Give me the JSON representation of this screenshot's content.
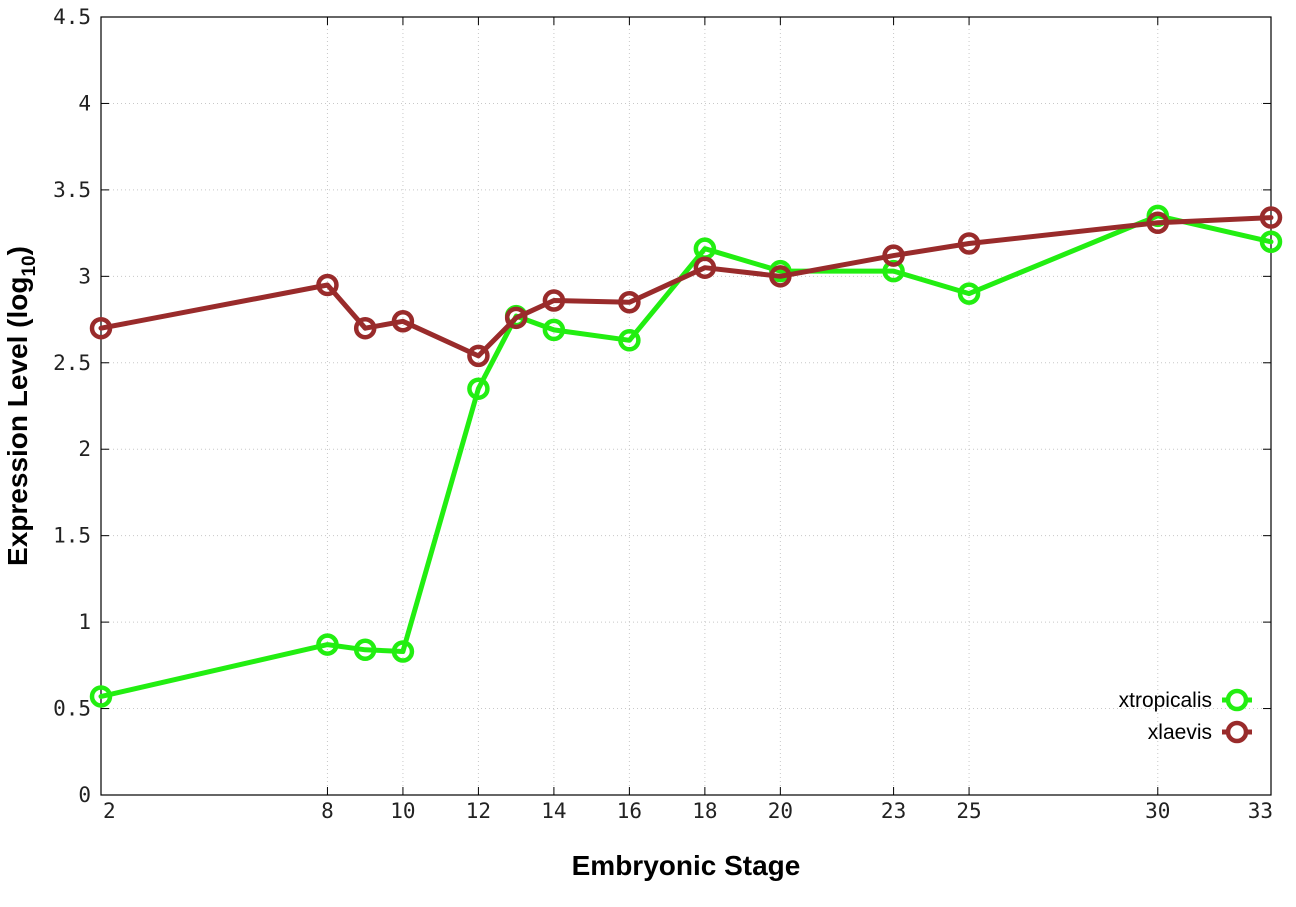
{
  "chart_data": {
    "type": "line",
    "xlabel": "Embryonic Stage",
    "ylabel_main": "Expression Level (log",
    "ylabel_sub": "10",
    "ylabel_close": ")",
    "ylim": [
      0,
      4.5
    ],
    "x_ticks": [
      2,
      8,
      10,
      12,
      14,
      16,
      18,
      20,
      23,
      25,
      30,
      33
    ],
    "y_ticks": [
      "0",
      "0.5",
      "1",
      "1.5",
      "2",
      "2.5",
      "3",
      "3.5",
      "4",
      "4.5"
    ],
    "grid": true,
    "legend_position": "bottom-right",
    "series": [
      {
        "name": "xtropicalis",
        "color": "#22ee11",
        "x": [
          2,
          8,
          9,
          10,
          12,
          13,
          14,
          16,
          18,
          20,
          23,
          25,
          30,
          33
        ],
        "y": [
          0.57,
          0.87,
          0.84,
          0.83,
          2.35,
          2.77,
          2.69,
          2.63,
          3.16,
          3.03,
          3.03,
          2.9,
          3.35,
          3.2
        ]
      },
      {
        "name": "xlaevis",
        "color": "#992b2b",
        "x": [
          2,
          8,
          9,
          10,
          12,
          13,
          14,
          16,
          18,
          20,
          23,
          25,
          30,
          33
        ],
        "y": [
          2.7,
          2.95,
          2.7,
          2.74,
          2.54,
          2.76,
          2.86,
          2.85,
          3.05,
          3.0,
          3.12,
          3.19,
          3.31,
          3.34
        ]
      }
    ]
  }
}
